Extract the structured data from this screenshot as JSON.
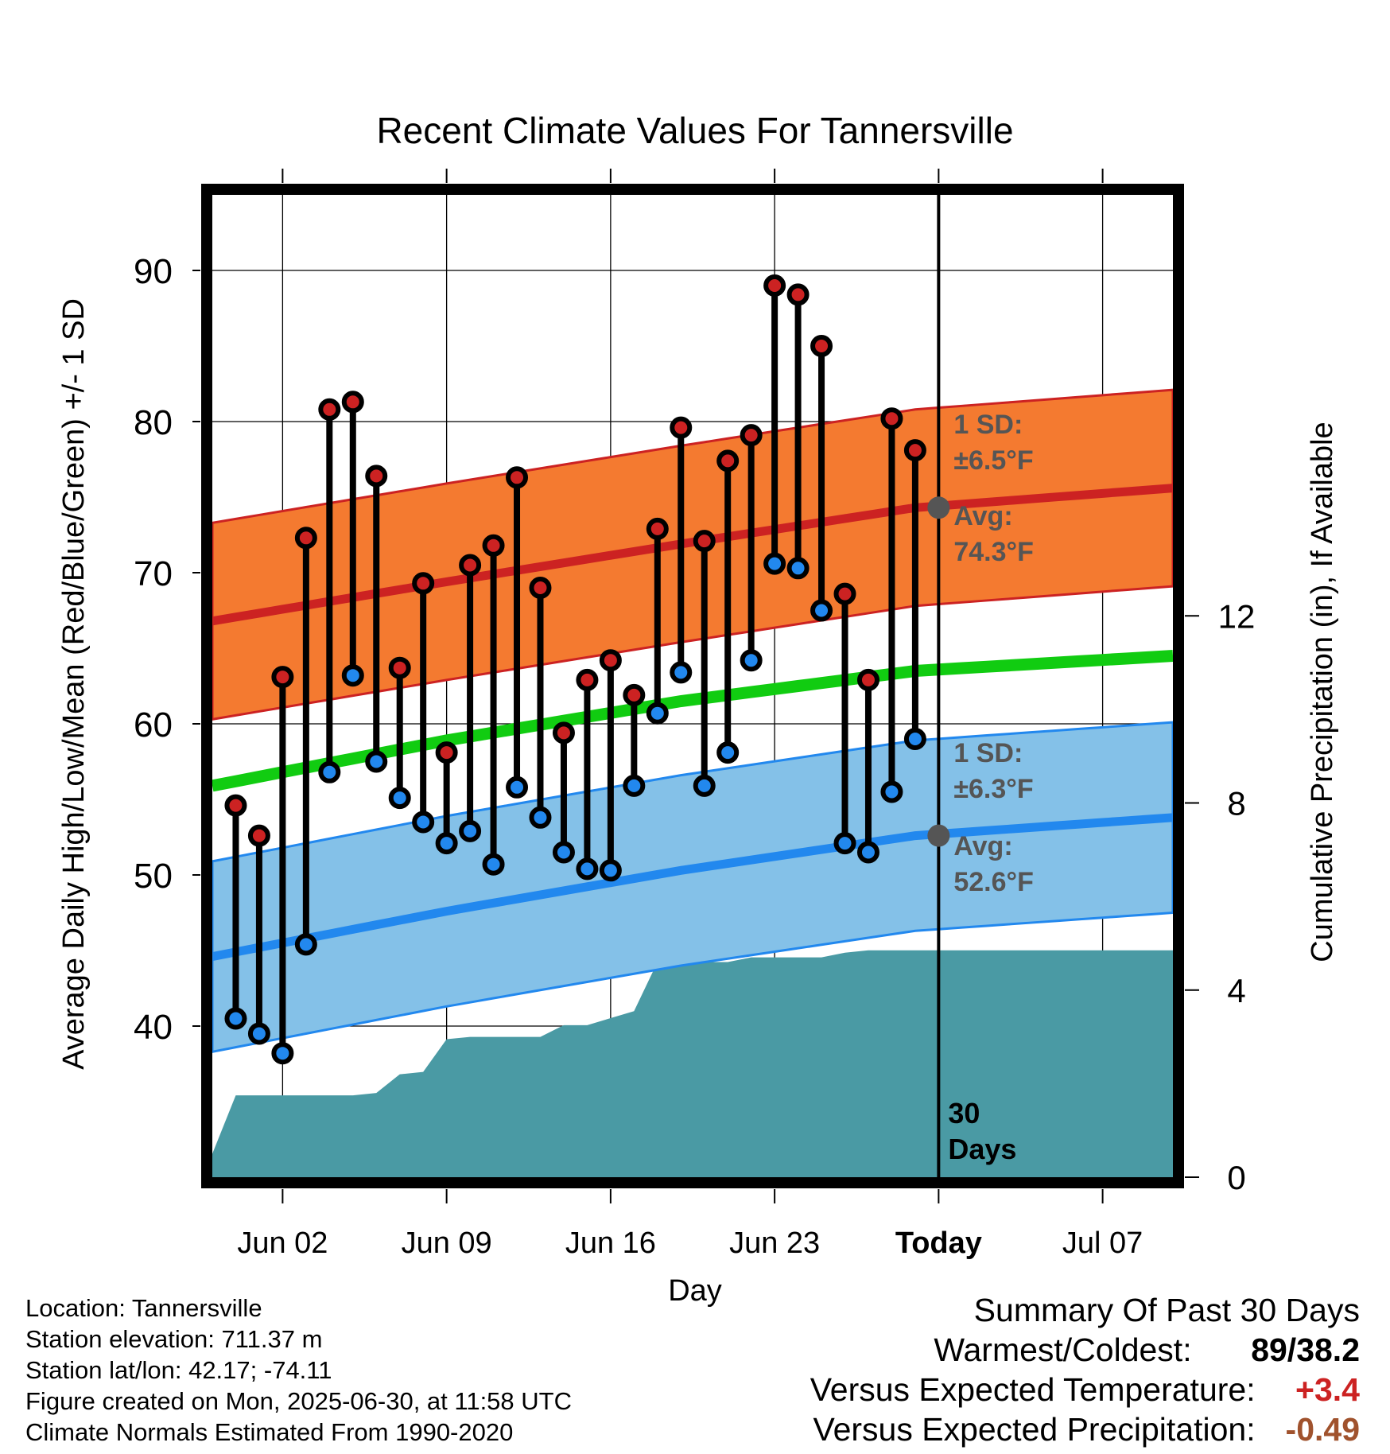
{
  "chart_data": {
    "type": "line",
    "title": "Recent Climate Values For Tannersville",
    "xlabel": "Day",
    "ylabel": "Average Daily High/Low/Mean (Red/Blue/Green) +/- 1 SD",
    "y2label": "Cumulative Precipitation (in), If Available",
    "x_ticks": [
      "Jun 02",
      "Jun 09",
      "Jun 16",
      "Jun 23",
      "Today",
      "Jul 07"
    ],
    "x_range": [
      "May 30",
      "Jul 10"
    ],
    "ylim": [
      30,
      95
    ],
    "y_ticks": [
      40,
      50,
      60,
      70,
      80,
      90
    ],
    "y2lim": [
      0,
      21
    ],
    "y2_ticks": [
      0,
      4,
      8,
      12
    ],
    "grid": true,
    "days": [
      "May 31",
      "Jun 01",
      "Jun 02",
      "Jun 03",
      "Jun 04",
      "Jun 05",
      "Jun 06",
      "Jun 07",
      "Jun 08",
      "Jun 09",
      "Jun 10",
      "Jun 11",
      "Jun 12",
      "Jun 13",
      "Jun 14",
      "Jun 15",
      "Jun 16",
      "Jun 17",
      "Jun 18",
      "Jun 19",
      "Jun 20",
      "Jun 21",
      "Jun 22",
      "Jun 23",
      "Jun 24",
      "Jun 25",
      "Jun 26",
      "Jun 27",
      "Jun 28",
      "Jun 29"
    ],
    "daily_high": [
      54.6,
      52.6,
      63.1,
      72.3,
      80.8,
      81.3,
      76.4,
      63.7,
      69.3,
      58.1,
      70.5,
      71.8,
      76.3,
      69.0,
      59.4,
      62.9,
      64.2,
      61.9,
      72.9,
      79.6,
      72.1,
      77.4,
      79.1,
      89.0,
      88.4,
      85.0,
      68.6,
      62.9,
      80.2,
      78.1
    ],
    "daily_low": [
      40.5,
      39.5,
      38.2,
      45.4,
      56.8,
      63.2,
      57.5,
      55.1,
      53.5,
      52.1,
      52.9,
      50.7,
      55.8,
      53.8,
      51.5,
      50.4,
      50.3,
      55.9,
      60.7,
      63.4,
      55.9,
      58.1,
      64.2,
      70.6,
      70.3,
      67.5,
      52.1,
      51.5,
      55.5,
      59.0
    ],
    "normal_high": {
      "x": [
        "May 30",
        "Jun 09",
        "Jun 19",
        "Jun 29",
        "Jul 10"
      ],
      "mean": [
        66.8,
        69.4,
        71.9,
        74.3,
        75.6
      ],
      "sd": 6.5
    },
    "normal_mean": {
      "x": [
        "May 30",
        "Jun 09",
        "Jun 19",
        "Jun 29",
        "Jul 10"
      ],
      "values": [
        55.9,
        58.9,
        61.5,
        63.5,
        64.5
      ]
    },
    "normal_low": {
      "x": [
        "May 30",
        "Jun 09",
        "Jun 19",
        "Jun 29",
        "Jul 10"
      ],
      "mean": [
        44.6,
        47.6,
        50.3,
        52.6,
        53.8
      ],
      "sd": 6.3
    },
    "precip_cumulative": {
      "x": [
        "May 30",
        "May 31",
        "Jun 01",
        "Jun 02",
        "Jun 03",
        "Jun 04",
        "Jun 05",
        "Jun 06",
        "Jun 07",
        "Jun 08",
        "Jun 09",
        "Jun 10",
        "Jun 11",
        "Jun 12",
        "Jun 13",
        "Jun 14",
        "Jun 15",
        "Jun 16",
        "Jun 17",
        "Jun 18",
        "Jun 19",
        "Jun 20",
        "Jun 21",
        "Jun 22",
        "Jun 23",
        "Jun 24",
        "Jun 25",
        "Jun 26",
        "Jun 27",
        "Jun 28",
        "Jun 29",
        "Jul 10"
      ],
      "values": [
        0.5,
        1.75,
        1.75,
        1.75,
        1.75,
        1.75,
        1.75,
        1.8,
        2.2,
        2.25,
        2.95,
        3.0,
        3.0,
        3.0,
        3.0,
        3.25,
        3.25,
        3.4,
        3.55,
        4.6,
        4.6,
        4.6,
        4.6,
        4.7,
        4.7,
        4.7,
        4.7,
        4.8,
        4.85,
        4.85,
        4.85,
        4.85
      ]
    },
    "annotations": {
      "high_sd_label": "1 SD:",
      "high_sd_value": "±6.5°F",
      "high_avg_label": "Avg:",
      "high_avg_value": "74.3°F",
      "low_sd_label": "1 SD:",
      "low_sd_value": "±6.3°F",
      "low_avg_label": "Avg:",
      "low_avg_value": "52.6°F",
      "window_label_1": "30",
      "window_label_2": "Days",
      "today_high_avg": 74.3,
      "today_low_avg": 52.6
    },
    "colors": {
      "high": "#cc2222",
      "high_band": "#f47a30",
      "low": "#2288ee",
      "low_band": "#84c1e8",
      "mean": "#11cc11",
      "precip": "#4a9aa4",
      "annotation": "#555555"
    }
  },
  "info": {
    "location": "Location: Tannersville",
    "elevation": "Station elevation: 711.37 m",
    "latlon": "Station lat/lon: 42.17; -74.11",
    "created": "Figure created on Mon, 2025-06-30, at 11:58 UTC",
    "normals": "Climate Normals Estimated From 1990-2020"
  },
  "summary": {
    "title": "Summary Of Past 30 Days",
    "warm_cold_label": "Warmest/Coldest:",
    "warm_cold_value": "89/38.2",
    "temp_label": "Versus Expected Temperature:",
    "temp_value": "+3.4",
    "precip_label": "Versus Expected Precipitation:",
    "precip_value": "-0.49",
    "temp_color": "#cc2222",
    "precip_color": "#a0522d"
  }
}
